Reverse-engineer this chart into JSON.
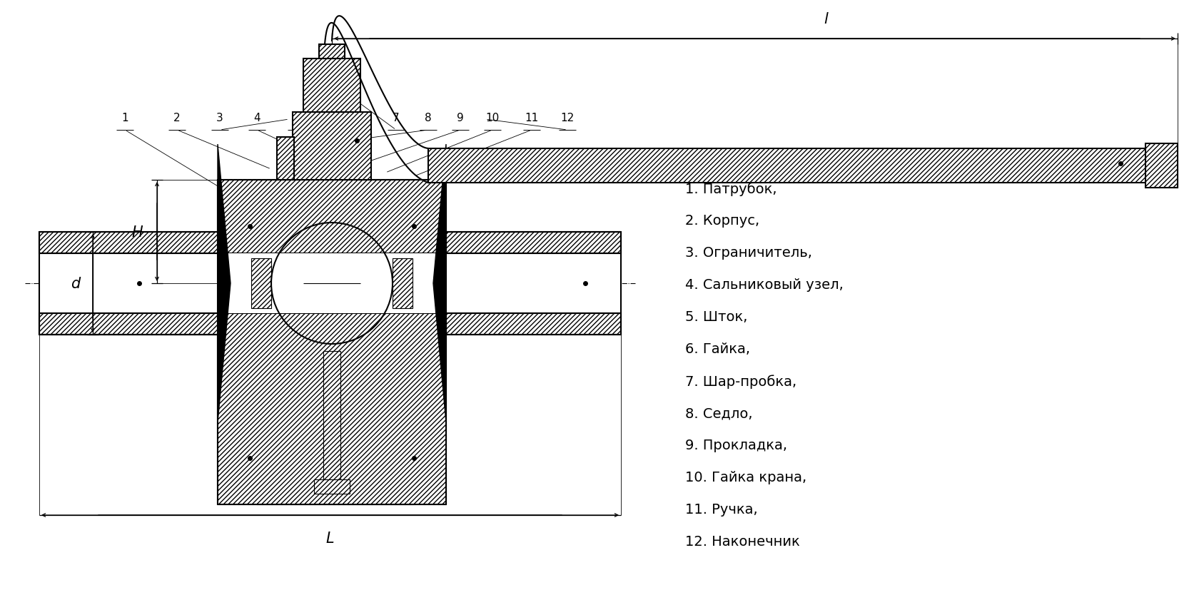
{
  "bg_color": "#ffffff",
  "line_color": "#000000",
  "fig_width": 16.87,
  "fig_height": 8.28,
  "legend_items": [
    "1. Патрубок,",
    "2. Корпус,",
    "3. Ограничитель,",
    "4. Сальниковый узел,",
    "5. Шток,",
    "6. Гайка,",
    "7. Шар-пробка,",
    "8. Седло,",
    "9. Прокладка,",
    "10. Гайка крана,",
    "11. Ручка,",
    "12. Наконечник"
  ],
  "dim_H": "H",
  "dim_d": "d",
  "dim_l": "l",
  "dim_L": "L",
  "font_size_legend": 13,
  "font_size_num": 11,
  "font_size_dim": 13
}
